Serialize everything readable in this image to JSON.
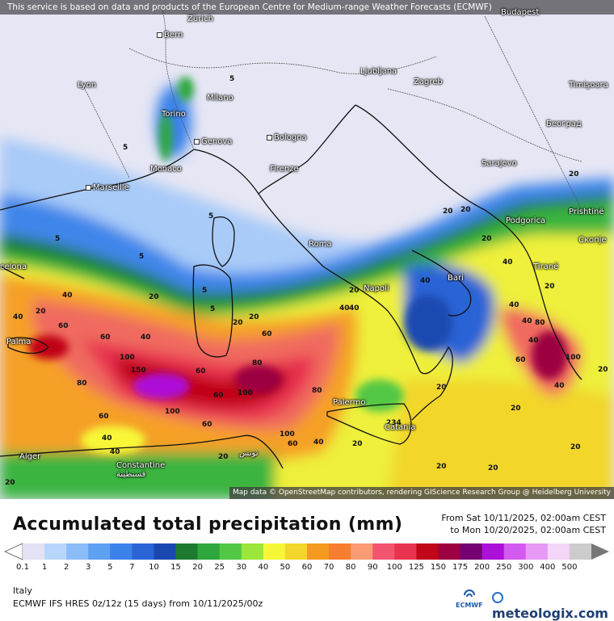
{
  "notice": "This service is based on data and products of the European Centre for Medium-range Weather Forecasts (ECMWF)",
  "attribution": "Map data © OpenStreetMap contributors, rendering GIScience Research Group @ Heidelberg University",
  "title": "Accumulated total precipitation (mm)",
  "period": {
    "from": "From Sat 10/11/2025, 02:00am CEST",
    "to": "to Mon 10/20/2025, 02:00am CEST"
  },
  "region": "Italy",
  "model": "ECMWF IFS HRES 0z/12z (15 days)  from  10/11/2025/00z",
  "logos": {
    "ecmwf": "ECMWF",
    "meteologix": "meteologix.com"
  },
  "legend": {
    "labels": [
      "0.1",
      "1",
      "2",
      "3",
      "5",
      "7",
      "10",
      "15",
      "20",
      "25",
      "30",
      "40",
      "50",
      "60",
      "70",
      "80",
      "90",
      "100",
      "125",
      "150",
      "175",
      "200",
      "250",
      "300",
      "400",
      "500"
    ],
    "colors": [
      "#e2e2f4",
      "#b8d6fb",
      "#8bbcf8",
      "#5ea0f2",
      "#3b82ea",
      "#2b64d6",
      "#1a48b0",
      "#1e7a31",
      "#2ea83c",
      "#52c845",
      "#9be63a",
      "#f7f739",
      "#f2d62c",
      "#f59a20",
      "#f77d2f",
      "#fb9b73",
      "#f2556e",
      "#e8334f",
      "#c00618",
      "#9c0040",
      "#740072",
      "#ad10d9",
      "#d35af0",
      "#e79af5",
      "#f3d6f8",
      "#cccccc"
    ]
  },
  "cities": [
    {
      "name": "Bern"
    },
    {
      "name": "Zürich"
    },
    {
      "name": "Lyon"
    },
    {
      "name": "Milano"
    },
    {
      "name": "Torino"
    },
    {
      "name": "Genova"
    },
    {
      "name": "Bologna"
    },
    {
      "name": "Firenze"
    },
    {
      "name": "Monaco"
    },
    {
      "name": "Marseille"
    },
    {
      "name": "Roma"
    },
    {
      "name": "Napoli"
    },
    {
      "name": "Bari"
    },
    {
      "name": "Palermo"
    },
    {
      "name": "Catania"
    },
    {
      "name": "Ljubljana"
    },
    {
      "name": "Zagreb"
    },
    {
      "name": "Budapest"
    },
    {
      "name": "Timişoara"
    },
    {
      "name": "Београд"
    },
    {
      "name": "Sarajevo"
    },
    {
      "name": "Podgorica"
    },
    {
      "name": "Prishtinë"
    },
    {
      "name": "Скопје"
    },
    {
      "name": "Tiranë"
    },
    {
      "name": "Palma"
    },
    {
      "name": "Alger"
    },
    {
      "name": "Constantine\nقسنطينة"
    },
    {
      "name": "تونس"
    },
    {
      "name": "celona"
    }
  ],
  "isolines": [
    "5",
    "5",
    "5",
    "5",
    "5",
    "5",
    "5",
    "20",
    "20",
    "20",
    "20",
    "20",
    "20",
    "40",
    "40",
    "40",
    "40",
    "40",
    "40",
    "60",
    "60",
    "60",
    "60",
    "60",
    "60",
    "80",
    "80",
    "80",
    "100",
    "100",
    "100",
    "100",
    "150",
    "20",
    "40",
    "40",
    "20",
    "20",
    "20",
    "40",
    "60",
    "40",
    "20",
    "20",
    "20",
    "40",
    "40",
    "20",
    "20",
    "40",
    "60",
    "80",
    "100",
    "20",
    "40",
    "20",
    "20",
    "20",
    "60",
    "234"
  ]
}
